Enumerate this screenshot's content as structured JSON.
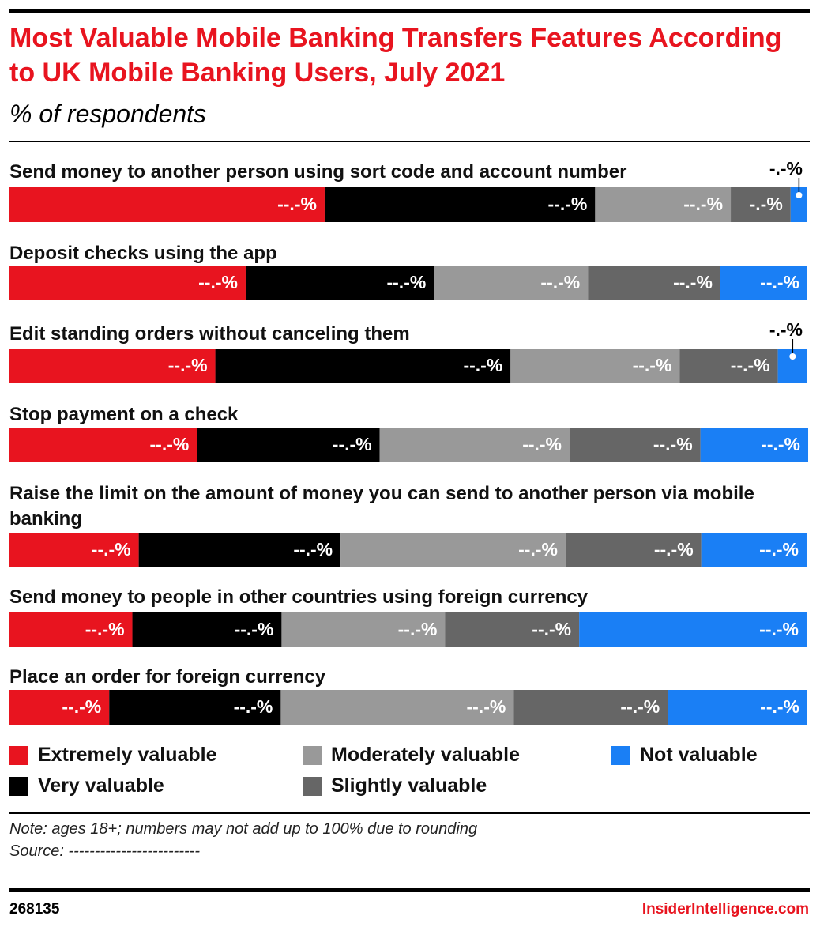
{
  "chart_data": {
    "type": "stacked-bar",
    "title": "Most Valuable Mobile Banking Transfers Features According to UK Mobile Banking Users, July 2021",
    "subtitle": "% of respondents",
    "categories": [
      "Send money to another person using sort code and account number",
      "Deposit checks using the app",
      "Edit standing orders without canceling them",
      "Stop payment on a check",
      "Raise the limit on the amount of money you can send to another person via mobile banking",
      "Send money to people in other countries using foreign currency",
      "Place an order for foreign currency"
    ],
    "xlim": [
      0,
      100
    ],
    "series": [
      {
        "name": "Extremely valuable",
        "color": "#e8141f",
        "values": [
          39.5,
          29.6,
          25.8,
          23.5,
          16.2,
          15.4,
          12.5
        ],
        "value_labels": [
          "--.-%",
          "--.-%",
          "--.-%",
          "--.-%",
          "--.-%",
          "--.-%",
          "--.-%"
        ]
      },
      {
        "name": "Very valuable",
        "color": "#000000",
        "values": [
          33.9,
          23.6,
          37.0,
          22.9,
          25.3,
          18.7,
          21.5
        ],
        "value_labels": [
          "--.-%",
          "--.-%",
          "--.-%",
          "--.-%",
          "--.-%",
          "--.-%",
          "--.-%"
        ]
      },
      {
        "name": "Moderately valuable",
        "color": "#999999",
        "values": [
          17.0,
          19.3,
          21.2,
          23.8,
          28.2,
          20.5,
          29.2
        ],
        "value_labels": [
          "--.-%",
          "--.-%",
          "--.-%",
          "--.-%",
          "--.-%",
          "--.-%",
          "--.-%"
        ]
      },
      {
        "name": "Slightly valuable",
        "color": "#666666",
        "values": [
          7.5,
          16.6,
          12.3,
          16.4,
          17.0,
          16.8,
          19.3
        ],
        "value_labels": [
          "-.-%",
          "--.-%",
          "--.-%",
          "--.-%",
          "--.-%",
          "--.-%",
          "--.-%"
        ]
      },
      {
        "name": "Not valuable",
        "color": "#1a7ff5",
        "values": [
          2.1,
          10.9,
          3.7,
          13.5,
          13.2,
          28.5,
          17.5
        ],
        "value_labels": [
          "-.-%",
          "--.-%",
          "-.-%",
          "--.-%",
          "--.-%",
          "--.-%",
          "--.-%"
        ]
      }
    ],
    "note": "Note: ages 18+; numbers may not add up to 100% due to rounding",
    "source": "Source: -------------------------",
    "chart_id": "268135",
    "brand": "InsiderIntelligence.com"
  }
}
